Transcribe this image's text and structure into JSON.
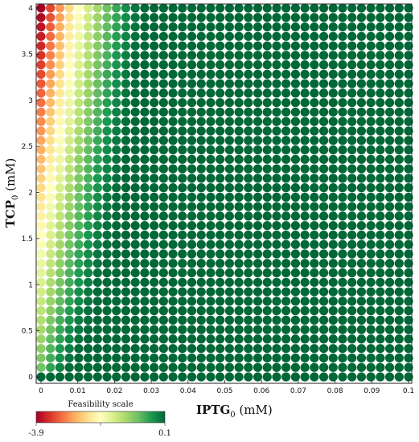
{
  "chart_data": {
    "type": "heatmap",
    "marker": "circle",
    "x": {
      "label_main": "IPTG",
      "label_sub": "0",
      "label_unit": " (mM)",
      "lim": [
        0,
        0.1
      ],
      "ticks": [
        0,
        0.01,
        0.02,
        0.03,
        0.04,
        0.05,
        0.06,
        0.07,
        0.08,
        0.09,
        0.1
      ],
      "tick_labels": [
        "0",
        "0.01",
        "0.02",
        "0.03",
        "0.04",
        "0.05",
        "0.06",
        "0.07",
        "0.08",
        "0.09",
        "0.1"
      ]
    },
    "y": {
      "label_main": "TCP",
      "label_sub": "0",
      "label_unit": " (mM)",
      "lim": [
        0,
        4
      ],
      "ticks": [
        0,
        0.5,
        1,
        1.5,
        2,
        2.5,
        3,
        3.5,
        4
      ],
      "tick_labels": [
        "0",
        "0.5",
        "1",
        "1.5",
        "2",
        "2.5",
        "3",
        "3.5",
        "4"
      ]
    },
    "grid_points": {
      "x_count": 40,
      "y_count": 40
    },
    "value_model": {
      "description_of_pattern": "feasibility ~0.1 (dark green) over most of grid; decreases toward -3.9 (red) as IPTG0 -> 0 and TCP0 increases; bottom row (TCP0=0) green",
      "max": 0.1,
      "min": -3.9,
      "boundary_coeffs": {
        "a": 0.012,
        "b": 0.005
      }
    },
    "colorbar": {
      "title": "Feasibility scale",
      "min_label": "-3.9",
      "max_label": "0.1",
      "min": -3.9,
      "max": 0.1,
      "colors": [
        "#a50026",
        "#d73027",
        "#f46d43",
        "#fdae61",
        "#fee08b",
        "#ffffbf",
        "#d9ef8b",
        "#a6d96a",
        "#66bd63",
        "#1a9850",
        "#006837"
      ]
    }
  }
}
